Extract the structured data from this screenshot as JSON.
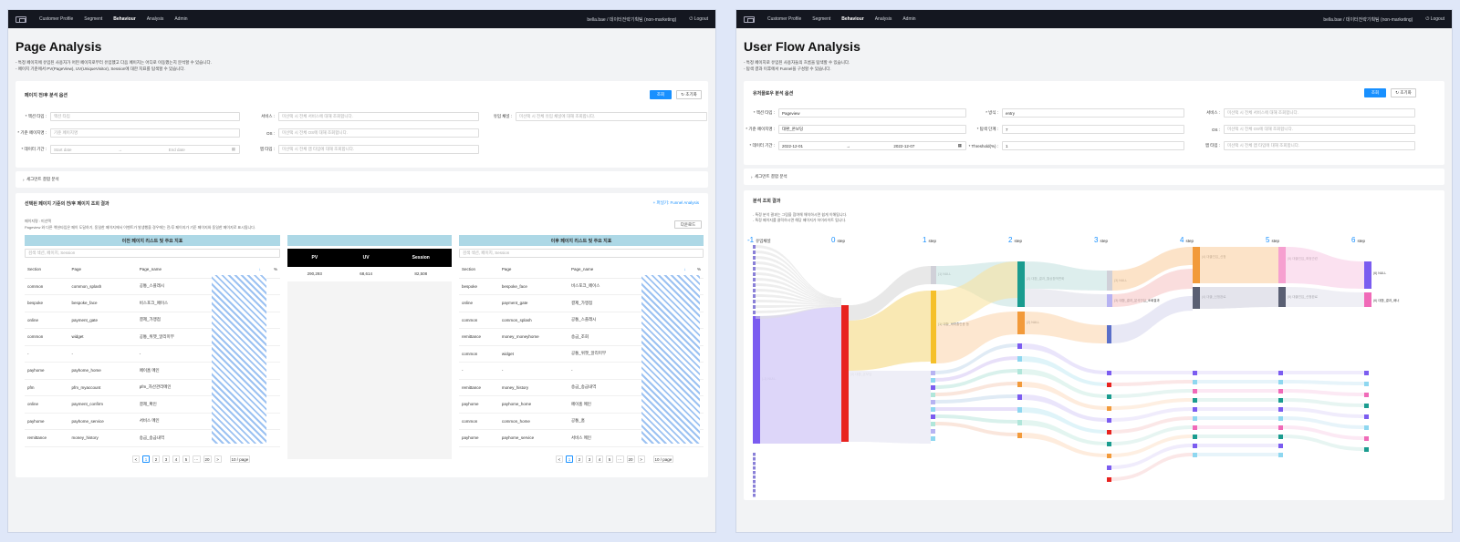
{
  "nav": {
    "items": [
      "Customer Profile",
      "Segment",
      "Behaviour",
      "Analysis",
      "Admin"
    ],
    "active": "Behaviour",
    "user": "bella.bae / 데이터전략기획팀 (non-marketing)",
    "logout": "Logout"
  },
  "left": {
    "title": "Page Analysis",
    "desc": [
      "- 특정 페이지에 유입된 사용자가 어떤 페이지로부터 유입했고 다음 페이지는 어디로 이동했는지 분석할 수 있습니다.",
      "- 페이지 기준에서 PV(PageView), UV(UniqueVisitor), Session에 대한 지표를 탐색할 수 있습니다."
    ],
    "options_title": "페이지 전/후 분석 옵션",
    "search": "조회",
    "reset": "초기화",
    "filters": {
      "event_label": "* 액션 타입 :",
      "event_ph": "액션 타입",
      "service_label": "서비스 :",
      "service_ph": "미선택 시 전체 서비스에 대해 조회합니다.",
      "inflow_label": "유입 채널 :",
      "inflow_ph": "미선택 시 전체 유입 채널에 대해 조회합니다.",
      "page_label": "* 기준 페이지명 :",
      "page_ph": "기준 페이지명",
      "os_label": "OS :",
      "os_ph": "미선택 시 전체 OS에 대해 조회합니다.",
      "period_label": "* 데이터 기간 :",
      "start_ph": "Start date",
      "end_ph": "End date",
      "app_label": "앱 타입 :",
      "app_ph": "미선택 시 전체 앱 타입에 대해 조회합니다."
    },
    "segment": "세그먼트 결합 분석",
    "result_title": "선택된 페이지 기준의 전/후 페이지 조회 결과",
    "funnel_link": "+ 퍼널기: Funnel Analysis",
    "note1": "페이지명 : 미선택",
    "note2": "Pageview 와 다른 액션타입은 페이 도달하기, 동일한 페이지에서 이벤트가 발생했을 경우에는 전/후 페이지가 기준 페이지와 동일한 페이지로 표시됩니다.",
    "download": "다운로드",
    "prev_band": "이전 페이지 리스트 및 주요 지표",
    "next_band": "이후 페이지 리스트 및 주요 지표",
    "table_search": "검색 섹션, 페이지, Session",
    "cols": [
      "Section",
      "Page",
      "Page_name",
      "↓",
      "%"
    ],
    "prev_rows": [
      [
        "common",
        "common_splash",
        "공통_스플래시"
      ],
      [
        "bespoke",
        "bespoke_face",
        "비스포크_페이스"
      ],
      [
        "online",
        "payment_gate",
        "결제_가맹점"
      ],
      [
        "common",
        "widget",
        "공통_위젯_알리미부"
      ],
      [
        "-",
        "-",
        "-"
      ],
      [
        "payhome",
        "payhome_home",
        "페이홈 메인"
      ],
      [
        "pfm",
        "pfm_myaccount",
        "pfm_자산관리메인"
      ],
      [
        "online",
        "payment_confirm",
        "결제_확인"
      ],
      [
        "payhome",
        "payhome_service",
        "서비스 메인"
      ],
      [
        "remittance",
        "money_history",
        "송금_송금내역"
      ]
    ],
    "next_rows": [
      [
        "bespoke",
        "bespoke_face",
        "비스포크_페이스"
      ],
      [
        "online",
        "payment_gate",
        "결제_가맹점"
      ],
      [
        "common",
        "common_splash",
        "공통_스플래시"
      ],
      [
        "remittance",
        "money_moneyhome",
        "송금_조회"
      ],
      [
        "common",
        "widget",
        "공통_위젯_알리미부"
      ],
      [
        "-",
        "-",
        "-"
      ],
      [
        "remittance",
        "money_history",
        "송금_송금내역"
      ],
      [
        "payhome",
        "payhome_home",
        "페이홈 메인"
      ],
      [
        "common",
        "common_home",
        "공통_홈"
      ],
      [
        "payhome",
        "payhome_service",
        "서비스 메인"
      ]
    ],
    "stats": {
      "headers": [
        "PV",
        "UV",
        "Session"
      ],
      "values": [
        "290,293",
        "68,614",
        "82,508"
      ]
    },
    "pager": [
      "<",
      "1",
      "2",
      "3",
      "4",
      "5",
      "···",
      "20",
      ">",
      "10 / page"
    ]
  },
  "right": {
    "title": "User Flow Analysis",
    "desc": [
      "- 특정 페이지로 유입된 사용자들의 흐름을 탐색할 수 있습니다.",
      "- 탐색 결과 이후에서 Funnel을 구성할 수 있습니다."
    ],
    "options_title": "유저플로우 분석 옵션",
    "search": "조회",
    "reset": "초기화",
    "filters": {
      "event_label": "* 액션 타입 :",
      "event_val": "Pageview",
      "dir_label": "* 방식 :",
      "dir_val": "entry",
      "service_label": "서비스 :",
      "service_ph": "미선택 시 전체 서비스에 대해 조회합니다.",
      "page_label": "* 기준 페이지명 :",
      "page_val": "대환_온보딩",
      "step_label": "* 탐색 단계 :",
      "step_val": "7",
      "os_label": "OS :",
      "os_ph": "미선택 시 전체 OS에 대해 조회합니다.",
      "period_label": "* 데이터 기간 :",
      "start_val": "2022-12-01",
      "end_val": "2022-12-07",
      "threshold_label": "* Threshold(%) :",
      "threshold_val": "1",
      "app_label": "앱 타입 :",
      "app_ph": "미선택 시 전체 앱 타입에 대해 조회합니다."
    },
    "segment": "세그먼트 결합 분석",
    "result_title": "분석 조회 결과",
    "result_desc": [
      "- 특정 분석 결과는 그림을 참여해 해석하시면 쉽게 이해됩니다.",
      "- 특정 페이지를 클릭하시면 해당 페이지가 하이라이트 됩니다."
    ],
    "steps": [
      {
        "n": "-1",
        "label": "유입채널"
      },
      {
        "n": "0",
        "label": "step"
      },
      {
        "n": "1",
        "label": "step"
      },
      {
        "n": "2",
        "label": "step"
      },
      {
        "n": "3",
        "label": "step"
      },
      {
        "n": "4",
        "label": "step"
      },
      {
        "n": "5",
        "label": "step"
      },
      {
        "n": "6",
        "label": "step"
      }
    ],
    "labels": {
      "null_main": "(-1) NULL",
      "anchor": "(0) 대환_온보딩",
      "s1_null": "(1) NULL",
      "s1_main": "(1) 대환_재대출인증 등",
      "s2_main": "(2) 대환_결과_월상환액변화",
      "s2_null": "(2) NULL",
      "s3_null": "(3) NULL",
      "s3_main": "(3) 대환_결과_분석진입_조회결과",
      "s4_main": "(4) 대출진입_신청",
      "s4_b": "(4) 대출_신청완료",
      "s5_main": "(5) 대출진입_확정관련",
      "s5_b": "(5) 대출진입_신청완료",
      "s6_a": "(6) NULL",
      "s6_b": "(6) 대환_결과_배너"
    },
    "colors": {
      "blue": "#1890ff",
      "sankey_purple": "#7b5cf0",
      "sankey_red": "#e8231f",
      "sankey_yellow": "#f5c02a",
      "sankey_teal": "#1a9c8f",
      "sankey_orange": "#f29a3a",
      "sankey_gray": "#5a5f73",
      "sankey_pink": "#f06ab8"
    }
  }
}
